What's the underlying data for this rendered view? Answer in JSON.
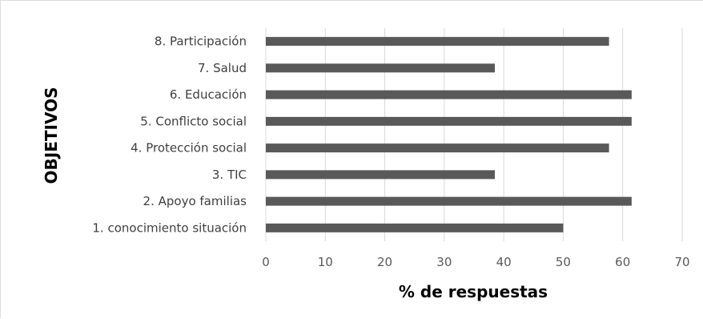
{
  "chart_data": {
    "type": "bar",
    "orientation": "horizontal",
    "categories": [
      "1. conocimiento situación",
      "2. Apoyo familias",
      "3. TIC",
      "4. Protección  social",
      "5. Conflicto social",
      "6. Educación",
      "7. Salud",
      "8. Participación"
    ],
    "values": [
      50,
      61.5,
      38.5,
      57.7,
      61.5,
      61.5,
      38.5,
      57.7
    ],
    "xlabel": "% de respuestas",
    "ylabel": "OBJETIVOS",
    "xlim": [
      0,
      70
    ],
    "xticks": [
      "0",
      "10",
      "20",
      "30",
      "40",
      "50",
      "60",
      "70"
    ],
    "grid": "vertical",
    "legend": "none",
    "bar_color": "#595959"
  }
}
